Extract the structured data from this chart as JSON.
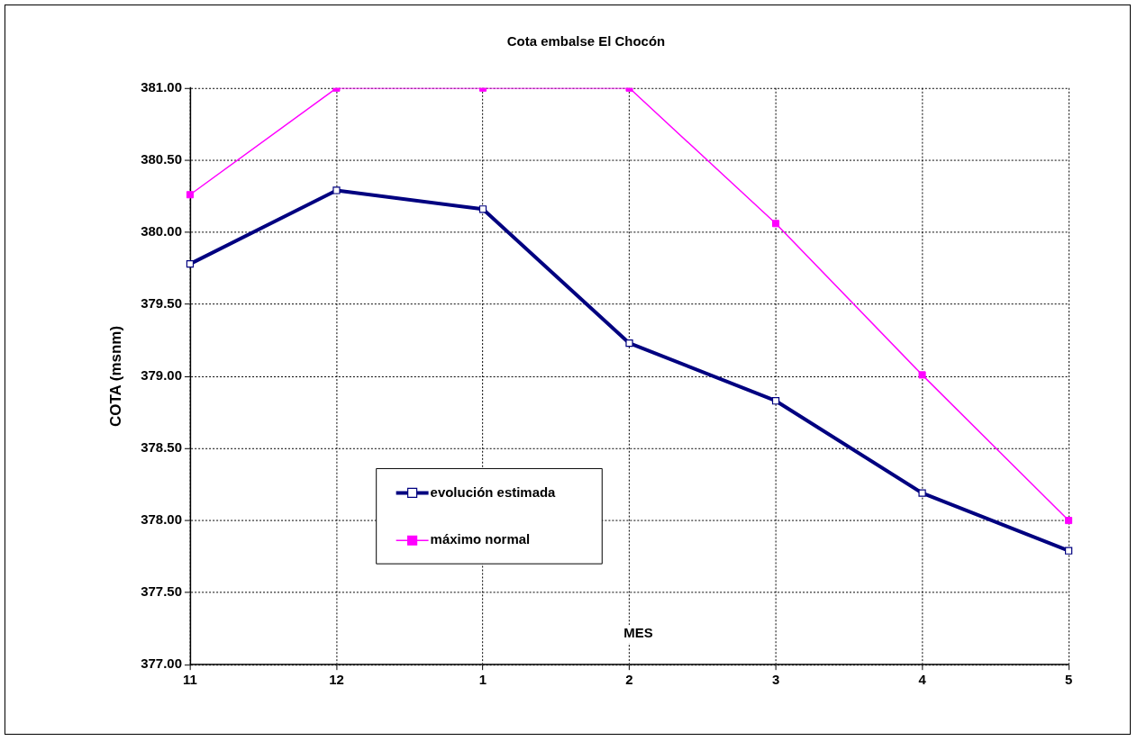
{
  "chart_data": {
    "type": "line",
    "title": "Cota embalse El Chocón",
    "xlabel": "MES",
    "ylabel": "COTA (msnm)",
    "categories": [
      "11",
      "12",
      "1",
      "2",
      "3",
      "4",
      "5"
    ],
    "series": [
      {
        "name": "evolución estimada",
        "color": "#000080",
        "values": [
          379.78,
          380.29,
          380.16,
          379.23,
          378.83,
          378.19,
          377.79
        ]
      },
      {
        "name": "máximo normal",
        "color": "#ff00ff",
        "values": [
          380.26,
          381.0,
          381.0,
          381.0,
          380.06,
          379.01,
          378.0
        ]
      }
    ],
    "ylim": [
      377,
      381
    ],
    "yticks": [
      {
        "value": 377,
        "label": "377.00"
      },
      {
        "value": 377.5,
        "label": "377.50"
      },
      {
        "value": 378,
        "label": "378.00"
      },
      {
        "value": 378.5,
        "label": "378.50"
      },
      {
        "value": 379,
        "label": "379.00"
      },
      {
        "value": 379.5,
        "label": "379.50"
      },
      {
        "value": 380,
        "label": "380.00"
      },
      {
        "value": 380.5,
        "label": "380.50"
      },
      {
        "value": 381,
        "label": "381.00"
      }
    ],
    "grid": true,
    "legend": "bottom left",
    "marker": "square",
    "line_style": "solid"
  }
}
